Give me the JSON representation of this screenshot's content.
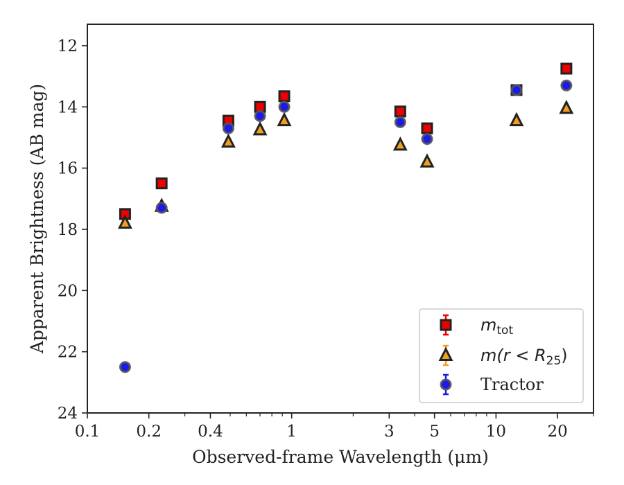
{
  "chart_data": {
    "type": "scatter",
    "title": "",
    "xlabel": "Observed-frame Wavelength (μm)",
    "ylabel": "Apparent Brightness (AB mag)",
    "x_scale": "log",
    "xlim": [
      0.1,
      30
    ],
    "ylim": [
      24,
      11.3
    ],
    "y_inverted": true,
    "x_ticks": [
      {
        "value": 0.1,
        "label": "0.1"
      },
      {
        "value": 0.2,
        "label": "0.2"
      },
      {
        "value": 0.4,
        "label": "0.4"
      },
      {
        "value": 1,
        "label": "1"
      },
      {
        "value": 3,
        "label": "3"
      },
      {
        "value": 5,
        "label": "5"
      },
      {
        "value": 10,
        "label": "10"
      },
      {
        "value": 20,
        "label": "20"
      }
    ],
    "y_ticks": [
      {
        "value": 12,
        "label": "12"
      },
      {
        "value": 14,
        "label": "14"
      },
      {
        "value": 16,
        "label": "16"
      },
      {
        "value": 18,
        "label": "18"
      },
      {
        "value": 20,
        "label": "20"
      },
      {
        "value": 22,
        "label": "22"
      },
      {
        "value": 24,
        "label": "24"
      }
    ],
    "grid": false,
    "legend_position": "lower-right",
    "series": [
      {
        "key": "mtot",
        "name_main": "m",
        "name_sub": "tot",
        "marker": "square",
        "color": "#ee0000",
        "edgecolor": "#222222",
        "x": [
          0.153,
          0.231,
          0.49,
          0.7,
          0.92,
          3.4,
          4.6,
          12.6,
          22.1
        ],
        "y": [
          17.5,
          16.5,
          14.45,
          14.0,
          13.65,
          14.15,
          14.7,
          13.45,
          12.75
        ]
      },
      {
        "key": "mr25",
        "name_main": "m(r < R",
        "name_sub": "25",
        "name_tail": ")",
        "marker": "triangle",
        "color": "#f0a020",
        "edgecolor": "#222222",
        "x": [
          0.153,
          0.231,
          0.49,
          0.7,
          0.92,
          3.4,
          4.6,
          12.6,
          22.1
        ],
        "y": [
          17.8,
          17.25,
          15.15,
          14.75,
          14.45,
          15.25,
          15.8,
          14.45,
          14.05
        ]
      },
      {
        "key": "tractor",
        "name": "Tractor",
        "marker": "circle",
        "color": "#1a1aee",
        "edgecolor": "#555555",
        "x": [
          0.153,
          0.231,
          0.49,
          0.7,
          0.92,
          3.4,
          4.6,
          12.6,
          22.1
        ],
        "y": [
          22.5,
          17.3,
          14.7,
          14.3,
          14.0,
          14.5,
          15.05,
          13.45,
          13.3
        ]
      }
    ]
  }
}
